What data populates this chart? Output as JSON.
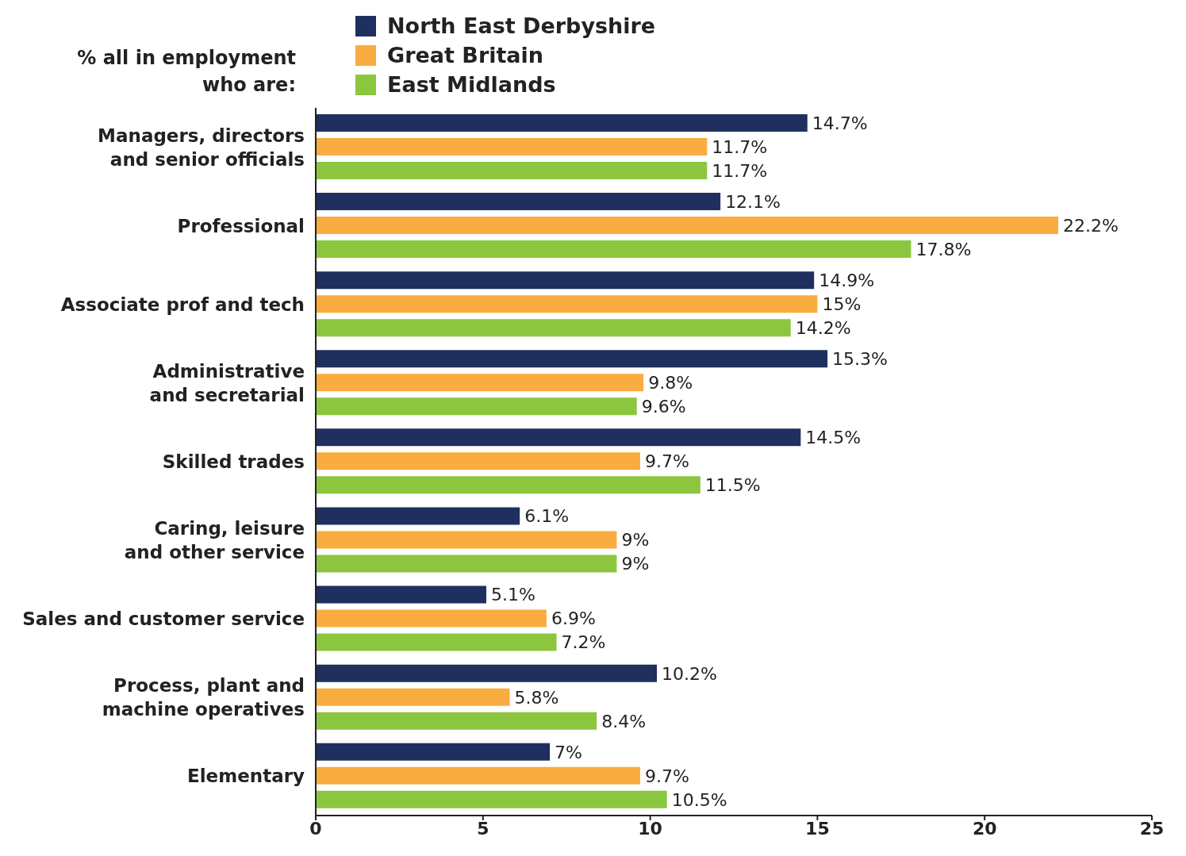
{
  "chart_data": {
    "type": "bar",
    "orientation": "horizontal",
    "title": "% all in employment who are:",
    "categories": [
      "Managers, directors and senior officials",
      "Professional",
      "Associate prof and tech",
      "Administrative and secretarial",
      "Skilled trades",
      "Caring, leisure and other service",
      "Sales and customer service",
      "Process, plant and machine operatives",
      "Elementary"
    ],
    "series": [
      {
        "name": "North East Derbyshire",
        "color": "#1f305e",
        "values": [
          14.7,
          12.1,
          14.9,
          15.3,
          14.5,
          6.1,
          5.1,
          10.2,
          7
        ],
        "value_labels": [
          "14.7%",
          "12.1%",
          "14.9%",
          "15.3%",
          "14.5%",
          "6.1%",
          "5.1%",
          "10.2%",
          "7%"
        ]
      },
      {
        "name": "Great Britain",
        "color": "#f9ac3f",
        "values": [
          11.7,
          22.2,
          15,
          9.8,
          9.7,
          9,
          6.9,
          5.8,
          9.7
        ],
        "value_labels": [
          "11.7%",
          "22.2%",
          "15%",
          "9.8%",
          "9.7%",
          "9%",
          "6.9%",
          "5.8%",
          "9.7%"
        ]
      },
      {
        "name": "East Midlands",
        "color": "#8cc63f",
        "values": [
          11.7,
          17.8,
          14.2,
          9.6,
          11.5,
          9,
          7.2,
          8.4,
          10.5
        ],
        "value_labels": [
          "11.7%",
          "17.8%",
          "14.2%",
          "9.6%",
          "11.5%",
          "9%",
          "7.2%",
          "8.4%",
          "10.5%"
        ]
      }
    ],
    "xlim": [
      0,
      25
    ],
    "xticks": [
      0,
      5,
      10,
      15,
      20,
      25
    ],
    "grid": false,
    "legend": "top"
  }
}
